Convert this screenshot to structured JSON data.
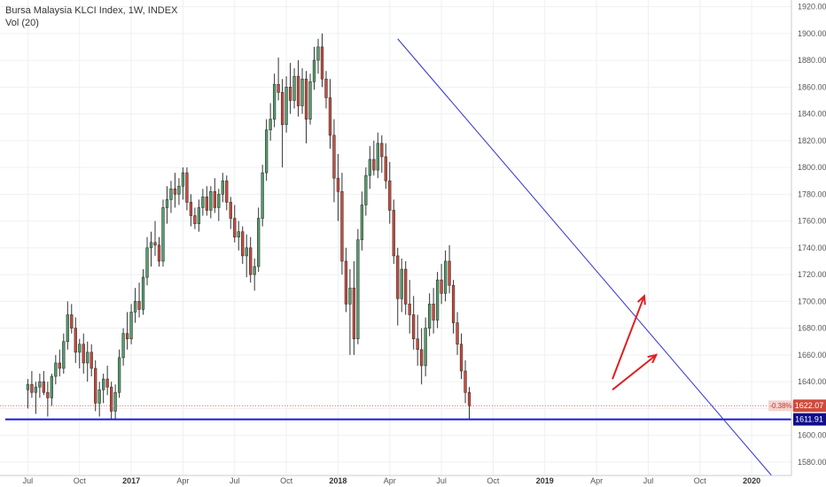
{
  "legend": {
    "title": "Bursa Malaysia KLCI Index, 1W, INDEX",
    "indicator": "Vol (20)"
  },
  "price_tags": {
    "change": "-0.38%",
    "last": "1622.07",
    "support": "1611.91"
  },
  "colors": {
    "up": "#53a06d",
    "down": "#cf4a3b",
    "trendline": "#3030d8",
    "support": "#1a1ad8",
    "arrow": "#e02020",
    "grid": "#eef0f3",
    "last_price_line": "#e46a5a"
  },
  "chart_data": {
    "type": "candlestick",
    "title": "Bursa Malaysia KLCI Index, 1W, INDEX",
    "y_ticks": [
      1580,
      1600,
      1620,
      1640,
      1660,
      1680,
      1700,
      1720,
      1740,
      1760,
      1780,
      1800,
      1820,
      1840,
      1860,
      1880,
      1900,
      1920
    ],
    "ylim": [
      1570,
      1925
    ],
    "x_ticks": [
      {
        "label": "Jul",
        "bold": false,
        "week": 0
      },
      {
        "label": "Oct",
        "bold": false,
        "week": 13
      },
      {
        "label": "2017",
        "bold": true,
        "week": 26
      },
      {
        "label": "Apr",
        "bold": false,
        "week": 39
      },
      {
        "label": "Jul",
        "bold": false,
        "week": 52
      },
      {
        "label": "Oct",
        "bold": false,
        "week": 65
      },
      {
        "label": "2018",
        "bold": true,
        "week": 78
      },
      {
        "label": "Apr",
        "bold": false,
        "week": 91
      },
      {
        "label": "Jul",
        "bold": false,
        "week": 104
      },
      {
        "label": "Oct",
        "bold": false,
        "week": 117
      },
      {
        "label": "2019",
        "bold": true,
        "week": 130
      },
      {
        "label": "Apr",
        "bold": false,
        "week": 143
      },
      {
        "label": "Jul",
        "bold": false,
        "week": 156
      },
      {
        "label": "Oct",
        "bold": false,
        "week": 169
      },
      {
        "label": "2020",
        "bold": true,
        "week": 182
      }
    ],
    "week_range": [
      -7,
      192
    ],
    "last_price": 1622.07,
    "change_pct": "-0.38%",
    "support_level": 1611.91,
    "trendline": {
      "from": {
        "week": 93,
        "price": 1896
      },
      "to": {
        "week": 187,
        "price": 1570
      }
    },
    "arrows": [
      {
        "from": {
          "week": 147,
          "price": 1642
        },
        "to": {
          "week": 155,
          "price": 1704
        }
      },
      {
        "from": {
          "week": 147,
          "price": 1634
        },
        "to": {
          "week": 158,
          "price": 1660
        }
      }
    ],
    "candles": [
      [
        1634,
        1642,
        1620,
        1638
      ],
      [
        1638,
        1648,
        1628,
        1632
      ],
      [
        1632,
        1640,
        1616,
        1636
      ],
      [
        1636,
        1646,
        1628,
        1640
      ],
      [
        1640,
        1648,
        1630,
        1632
      ],
      [
        1632,
        1640,
        1614,
        1628
      ],
      [
        1628,
        1646,
        1622,
        1644
      ],
      [
        1644,
        1660,
        1638,
        1654
      ],
      [
        1654,
        1664,
        1644,
        1650
      ],
      [
        1650,
        1676,
        1646,
        1670
      ],
      [
        1670,
        1700,
        1664,
        1690
      ],
      [
        1690,
        1698,
        1676,
        1680
      ],
      [
        1680,
        1688,
        1654,
        1662
      ],
      [
        1662,
        1672,
        1650,
        1668
      ],
      [
        1668,
        1676,
        1646,
        1654
      ],
      [
        1654,
        1670,
        1640,
        1662
      ],
      [
        1662,
        1668,
        1644,
        1650
      ],
      [
        1650,
        1656,
        1618,
        1624
      ],
      [
        1624,
        1640,
        1614,
        1634
      ],
      [
        1634,
        1646,
        1624,
        1642
      ],
      [
        1642,
        1652,
        1630,
        1636
      ],
      [
        1636,
        1640,
        1612,
        1618
      ],
      [
        1618,
        1638,
        1612,
        1632
      ],
      [
        1632,
        1664,
        1628,
        1658
      ],
      [
        1658,
        1680,
        1652,
        1676
      ],
      [
        1676,
        1692,
        1664,
        1672
      ],
      [
        1672,
        1698,
        1668,
        1692
      ],
      [
        1692,
        1710,
        1684,
        1700
      ],
      [
        1700,
        1714,
        1688,
        1694
      ],
      [
        1694,
        1724,
        1690,
        1718
      ],
      [
        1718,
        1748,
        1712,
        1740
      ],
      [
        1740,
        1752,
        1726,
        1744
      ],
      [
        1744,
        1760,
        1734,
        1742
      ],
      [
        1742,
        1748,
        1726,
        1730
      ],
      [
        1730,
        1776,
        1726,
        1770
      ],
      [
        1770,
        1786,
        1758,
        1776
      ],
      [
        1776,
        1790,
        1766,
        1784
      ],
      [
        1784,
        1796,
        1770,
        1780
      ],
      [
        1780,
        1792,
        1772,
        1786
      ],
      [
        1786,
        1800,
        1776,
        1796
      ],
      [
        1796,
        1800,
        1768,
        1774
      ],
      [
        1774,
        1780,
        1756,
        1764
      ],
      [
        1764,
        1770,
        1754,
        1758
      ],
      [
        1758,
        1776,
        1752,
        1770
      ],
      [
        1770,
        1784,
        1764,
        1778
      ],
      [
        1778,
        1786,
        1764,
        1768
      ],
      [
        1768,
        1786,
        1762,
        1782
      ],
      [
        1782,
        1792,
        1766,
        1770
      ],
      [
        1770,
        1784,
        1760,
        1780
      ],
      [
        1780,
        1796,
        1774,
        1790
      ],
      [
        1790,
        1794,
        1768,
        1774
      ],
      [
        1774,
        1778,
        1754,
        1762
      ],
      [
        1762,
        1772,
        1744,
        1748
      ],
      [
        1748,
        1760,
        1738,
        1752
      ],
      [
        1752,
        1756,
        1728,
        1734
      ],
      [
        1734,
        1750,
        1718,
        1740
      ],
      [
        1740,
        1748,
        1714,
        1720
      ],
      [
        1720,
        1732,
        1708,
        1726
      ],
      [
        1726,
        1770,
        1722,
        1762
      ],
      [
        1762,
        1802,
        1756,
        1796
      ],
      [
        1796,
        1836,
        1790,
        1828
      ],
      [
        1828,
        1848,
        1820,
        1836
      ],
      [
        1836,
        1870,
        1830,
        1862
      ],
      [
        1862,
        1882,
        1850,
        1856
      ],
      [
        1856,
        1866,
        1800,
        1832
      ],
      [
        1832,
        1868,
        1826,
        1860
      ],
      [
        1860,
        1878,
        1840,
        1850
      ],
      [
        1850,
        1874,
        1844,
        1868
      ],
      [
        1868,
        1880,
        1838,
        1846
      ],
      [
        1846,
        1874,
        1840,
        1866
      ],
      [
        1866,
        1872,
        1818,
        1836
      ],
      [
        1836,
        1870,
        1832,
        1864
      ],
      [
        1864,
        1890,
        1858,
        1880
      ],
      [
        1880,
        1896,
        1870,
        1890
      ],
      [
        1890,
        1900,
        1860,
        1866
      ],
      [
        1866,
        1872,
        1844,
        1852
      ],
      [
        1852,
        1866,
        1814,
        1824
      ],
      [
        1824,
        1836,
        1774,
        1792
      ],
      [
        1792,
        1810,
        1760,
        1782
      ],
      [
        1782,
        1796,
        1720,
        1730
      ],
      [
        1730,
        1740,
        1692,
        1698
      ],
      [
        1698,
        1724,
        1660,
        1710
      ],
      [
        1710,
        1730,
        1660,
        1672
      ],
      [
        1672,
        1754,
        1668,
        1746
      ],
      [
        1746,
        1782,
        1738,
        1772
      ],
      [
        1772,
        1800,
        1764,
        1794
      ],
      [
        1794,
        1816,
        1784,
        1806
      ],
      [
        1806,
        1820,
        1794,
        1798
      ],
      [
        1798,
        1826,
        1792,
        1818
      ],
      [
        1818,
        1824,
        1796,
        1808
      ],
      [
        1808,
        1818,
        1784,
        1790
      ],
      [
        1790,
        1804,
        1758,
        1768
      ],
      [
        1768,
        1776,
        1728,
        1734
      ],
      [
        1734,
        1740,
        1682,
        1702
      ],
      [
        1702,
        1732,
        1692,
        1724
      ],
      [
        1724,
        1730,
        1690,
        1698
      ],
      [
        1698,
        1716,
        1676,
        1690
      ],
      [
        1690,
        1704,
        1664,
        1672
      ],
      [
        1672,
        1690,
        1652,
        1664
      ],
      [
        1664,
        1680,
        1638,
        1652
      ],
      [
        1652,
        1688,
        1644,
        1680
      ],
      [
        1680,
        1706,
        1674,
        1698
      ],
      [
        1698,
        1710,
        1676,
        1686
      ],
      [
        1686,
        1722,
        1680,
        1716
      ],
      [
        1716,
        1728,
        1698,
        1706
      ],
      [
        1706,
        1738,
        1700,
        1730
      ],
      [
        1730,
        1742,
        1706,
        1712
      ],
      [
        1712,
        1716,
        1676,
        1684
      ],
      [
        1684,
        1692,
        1660,
        1668
      ],
      [
        1668,
        1676,
        1642,
        1648
      ],
      [
        1648,
        1656,
        1624,
        1632
      ],
      [
        1632,
        1636,
        1612,
        1622
      ]
    ]
  }
}
